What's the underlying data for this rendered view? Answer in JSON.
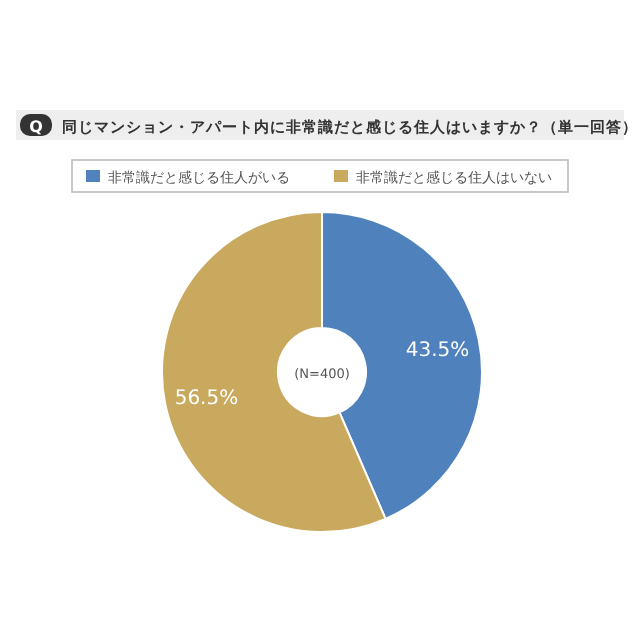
{
  "chart_data": {
    "type": "donut",
    "title": "同じマンション・アパート内に非常識だと感じる住人はいますか？（単一回答）",
    "categories": [
      "非常識だと感じる住人がいる",
      "非常識だと感じる住人はいない"
    ],
    "values": [
      43.5,
      56.5
    ],
    "colors": [
      "#4f81bd",
      "#c8a95e"
    ],
    "value_labels": [
      "43.5%",
      "56.5%"
    ],
    "annotations": [
      "Q",
      "(N=400)"
    ],
    "legend": "top"
  }
}
